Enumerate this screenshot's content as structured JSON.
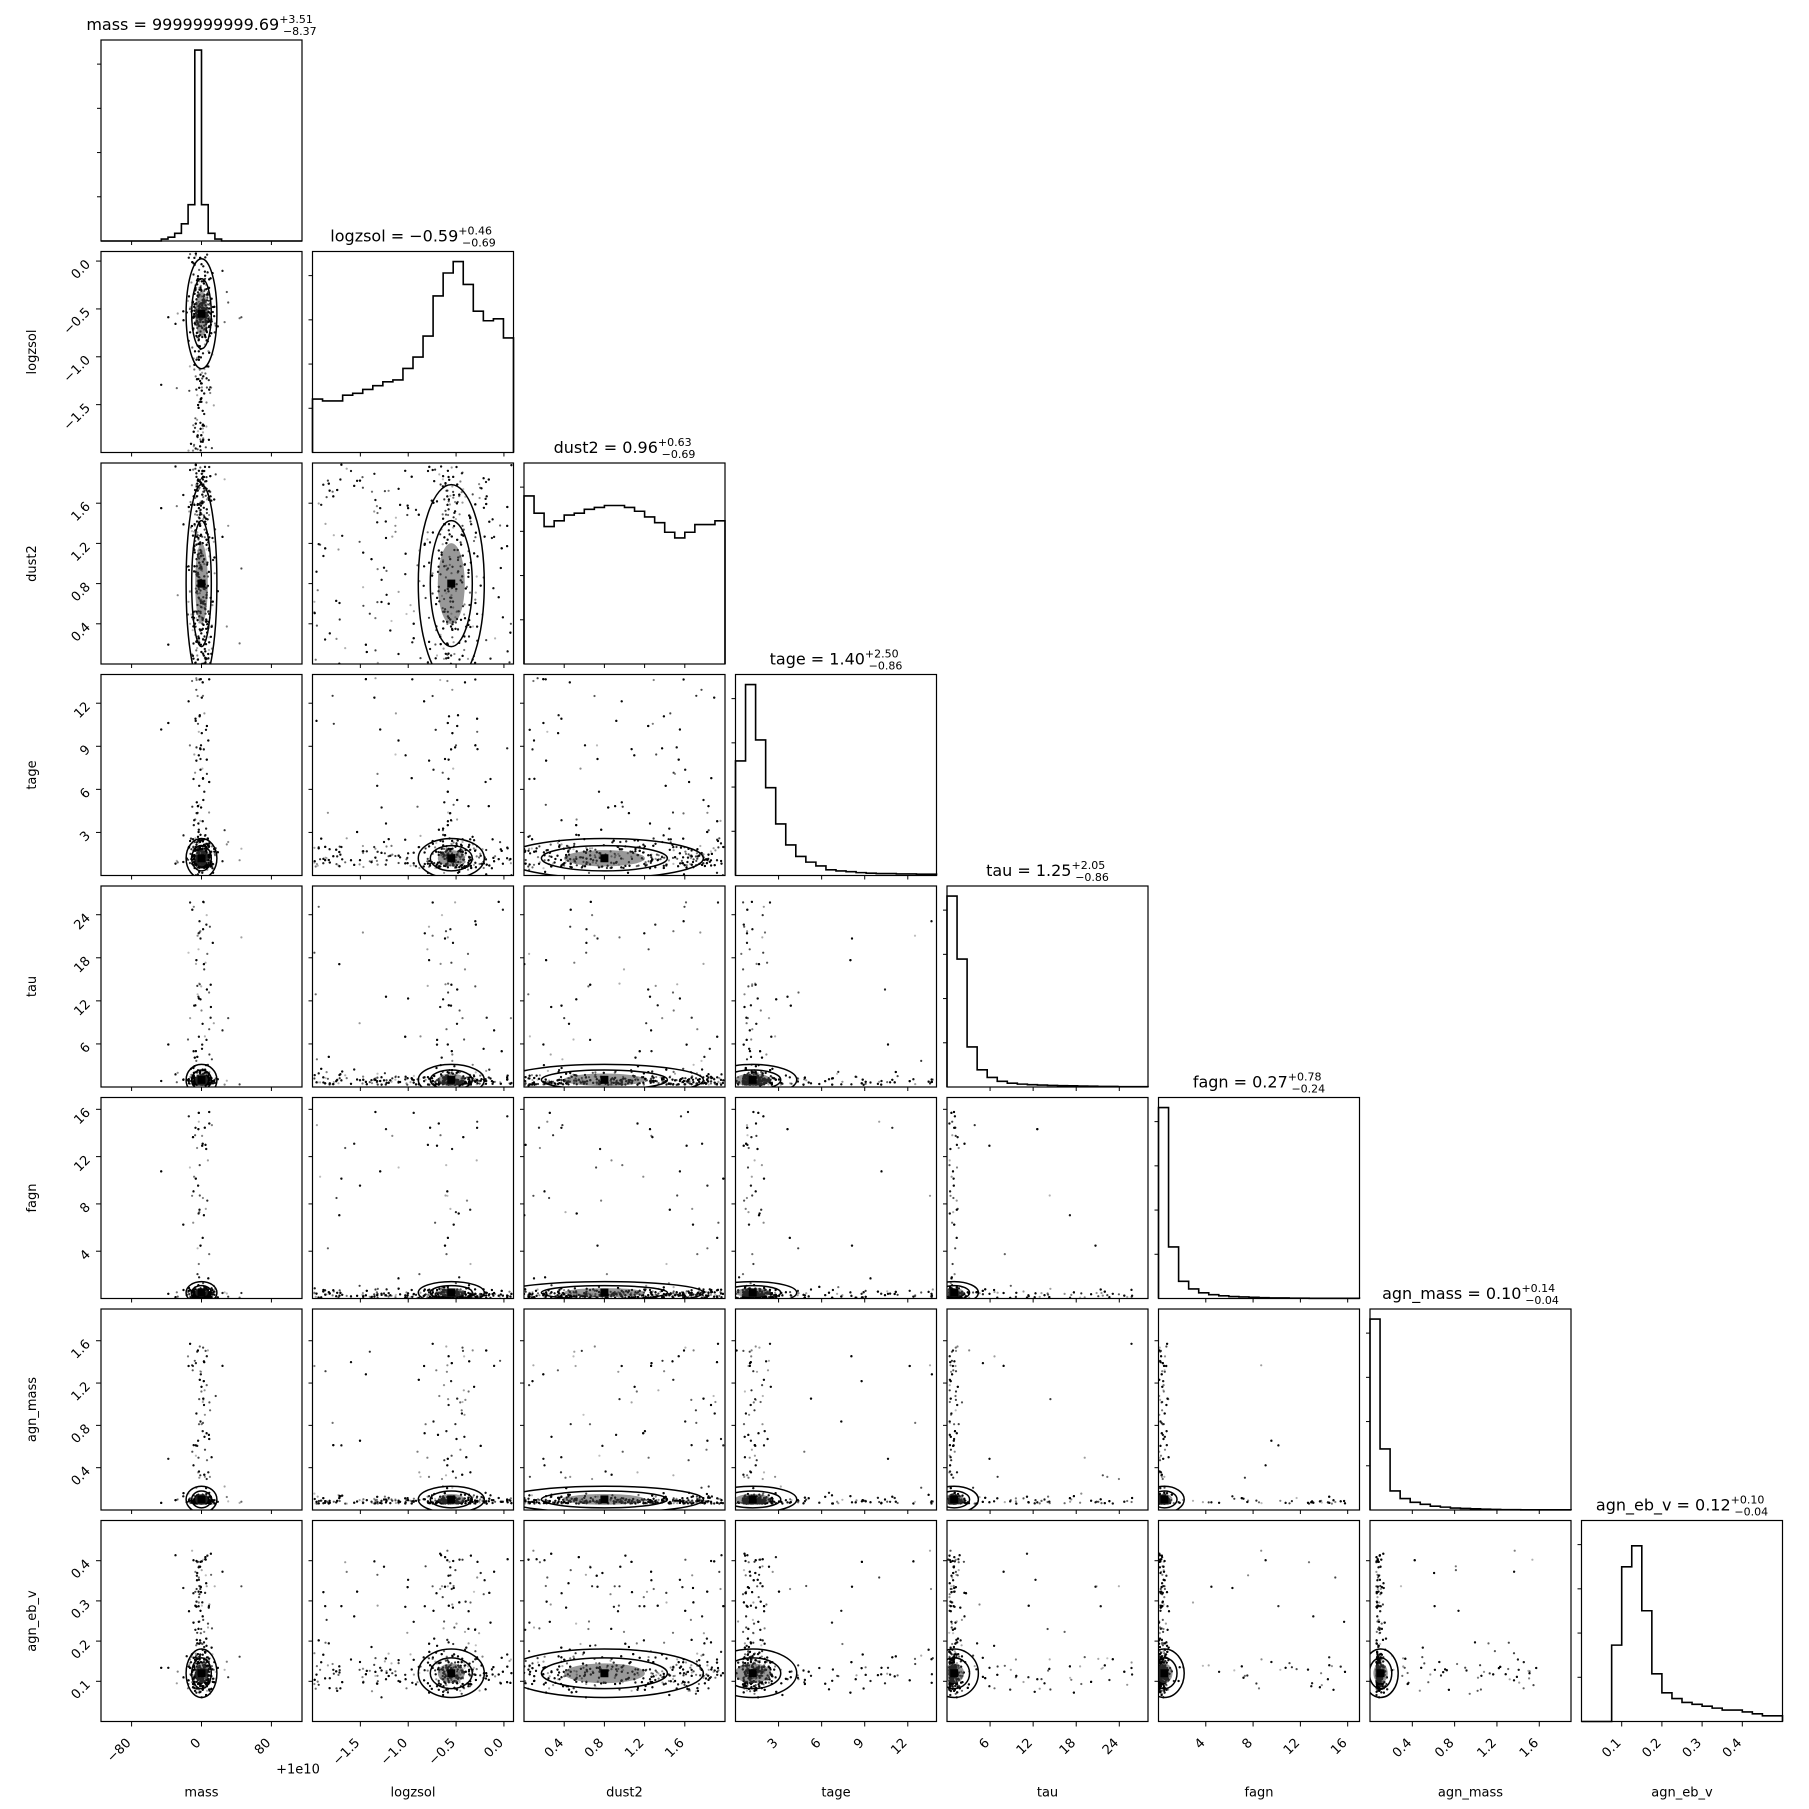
{
  "chart_data": {
    "type": "scatter",
    "figure_kind": "corner plot",
    "parameters": [
      "mass",
      "logzsol",
      "dust2",
      "tage",
      "tau",
      "fagn",
      "agn_mass",
      "agn_eb_v"
    ],
    "axis_labels": [
      "mass",
      "logzsol",
      "dust2",
      "tage",
      "tau",
      "fagn",
      "agn_mass",
      "agn_eb_v"
    ],
    "offset_label": "+1e10",
    "summaries": [
      {
        "name": "mass",
        "prefix": "mass = ",
        "value": "9999999999.69",
        "plus": "+3.51",
        "minus": "−8.37"
      },
      {
        "name": "logzsol",
        "prefix": "logzsol = ",
        "value": "−0.59",
        "plus": "+0.46",
        "minus": "−0.69"
      },
      {
        "name": "dust2",
        "prefix": "dust2 = ",
        "value": "0.96",
        "plus": "+0.63",
        "minus": "−0.69"
      },
      {
        "name": "tage",
        "prefix": "tage = ",
        "value": "1.40",
        "plus": "+2.50",
        "minus": "−0.86"
      },
      {
        "name": "tau",
        "prefix": "tau = ",
        "value": "1.25",
        "plus": "+2.05",
        "minus": "−0.86"
      },
      {
        "name": "fagn",
        "prefix": "fagn = ",
        "value": "0.27",
        "plus": "+0.78",
        "minus": "−0.24"
      },
      {
        "name": "agn_mass",
        "prefix": "agn_mass = ",
        "value": "0.10",
        "plus": "+0.14",
        "minus": "−0.04"
      },
      {
        "name": "agn_eb_v",
        "prefix": "agn_eb_v = ",
        "value": "0.12",
        "plus": "+0.10",
        "minus": "−0.04"
      }
    ],
    "ranges": [
      [
        -115,
        115
      ],
      [
        -2.0,
        0.1
      ],
      [
        0.0,
        2.0
      ],
      [
        0.0,
        14.0
      ],
      [
        0.0,
        28.0
      ],
      [
        0.0,
        17.0
      ],
      [
        0.0,
        1.9
      ],
      [
        0.0,
        0.5
      ]
    ],
    "ticks": [
      [
        -80,
        0,
        80
      ],
      [
        -1.5,
        -1.0,
        -0.5,
        0.0
      ],
      [
        0.4,
        0.8,
        1.2,
        1.6
      ],
      [
        3,
        6,
        9,
        12
      ],
      [
        6,
        12,
        18,
        24
      ],
      [
        4,
        8,
        12,
        16
      ],
      [
        0.4,
        0.8,
        1.2,
        1.6
      ],
      [
        0.1,
        0.2,
        0.3,
        0.4
      ]
    ],
    "tick_labels": [
      [
        "−80",
        "0",
        "80"
      ],
      [
        "−1.5",
        "−1.0",
        "−0.5",
        "0.0"
      ],
      [
        "0.4",
        "0.8",
        "1.2",
        "1.6"
      ],
      [
        "3",
        "6",
        "9",
        "12"
      ],
      [
        "6",
        "12",
        "18",
        "24"
      ],
      [
        "4",
        "8",
        "12",
        "16"
      ],
      [
        "0.4",
        "0.8",
        "1.2",
        "1.6"
      ],
      [
        "0.1",
        "0.2",
        "0.3",
        "0.4"
      ]
    ],
    "histograms": [
      [
        0,
        0,
        0,
        0,
        0,
        0,
        0,
        0,
        0,
        1,
        2,
        4,
        9,
        19,
        100,
        19,
        4,
        1,
        0,
        0,
        0,
        0,
        0,
        0,
        0,
        0,
        0,
        0,
        0,
        0
      ],
      [
        28,
        27,
        27,
        30,
        31,
        33,
        35,
        37,
        38,
        44,
        50,
        61,
        82,
        94,
        100,
        88,
        74,
        69,
        70,
        60
      ],
      [
        88,
        79,
        72,
        75,
        78,
        79,
        81,
        82,
        83,
        83,
        82,
        80,
        77,
        74,
        69,
        66,
        69,
        73,
        73,
        75
      ],
      [
        60,
        100,
        71,
        46,
        27,
        16,
        10,
        7,
        5,
        3,
        2.4,
        2,
        1.5,
        1.2,
        1,
        1,
        0.8,
        0.8,
        0.7,
        0.7
      ],
      [
        100,
        67,
        21,
        9,
        5,
        3,
        2,
        1.5,
        1.2,
        1,
        0.8,
        0.7,
        0.6,
        0.5,
        0.4,
        0.3,
        0.3,
        0.2,
        0.2,
        0.2
      ],
      [
        100,
        27,
        9,
        5,
        3,
        2,
        1.4,
        1,
        0.8,
        0.6,
        0.4,
        0.3,
        0.3,
        0.2,
        0.2,
        0.1,
        0.1,
        0.1,
        0.1,
        0.1
      ],
      [
        100,
        32,
        10,
        6,
        4,
        3,
        2,
        1.5,
        1,
        0.8,
        0.6,
        0.4,
        0.3,
        0.2,
        0.2,
        0.1,
        0.1,
        0.1,
        0.1,
        0.1
      ],
      [
        0,
        0,
        0,
        40,
        81,
        92,
        58,
        25,
        15,
        12,
        10,
        9,
        8,
        7,
        6,
        6,
        5,
        4,
        3,
        3
      ]
    ]
  }
}
